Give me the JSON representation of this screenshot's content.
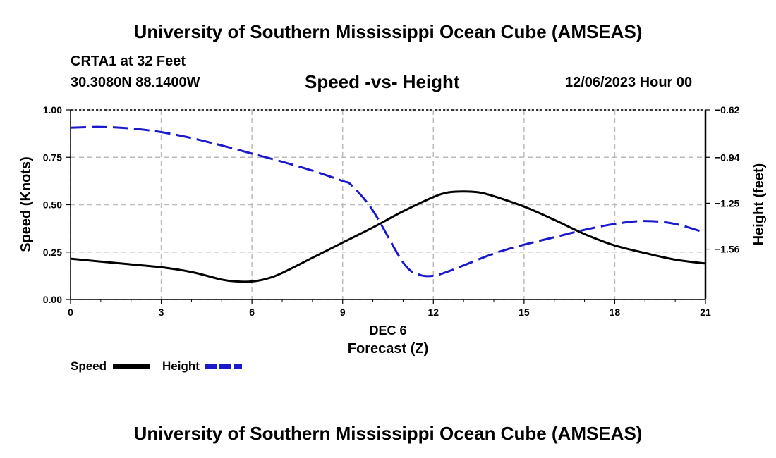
{
  "header": {
    "top_title": "University of Southern Mississippi Ocean Cube (AMSEAS)",
    "station": "CRTA1 at 32 Feet",
    "coords": "30.3080N  88.1400W",
    "chart_title": "Speed -vs- Height",
    "datetime": "12/06/2023 Hour 00",
    "bottom_title": "University of Southern Mississippi Ocean Cube (AMSEAS)"
  },
  "legend": {
    "speed_label": "Speed",
    "height_label": "Height"
  },
  "colors": {
    "speed": "#000000",
    "height": "#1a1acc",
    "grid": "#bbbbbb"
  },
  "chart_data": {
    "type": "line",
    "title": "Speed -vs- Height",
    "xlabel": "Forecast (Z)",
    "xlabel_date": "DEC 6",
    "ylabel": "Speed (Knots)",
    "y2label": "Height (feet)",
    "xlim": [
      0,
      21
    ],
    "ylim": [
      0,
      1
    ],
    "y2lim": [
      -1.9,
      -0.62
    ],
    "x_ticks": [
      "0",
      "3",
      "6",
      "9",
      "12",
      "15",
      "18",
      "21"
    ],
    "y_ticks": [
      "0.00",
      "0.25",
      "0.50",
      "0.75",
      "1.00"
    ],
    "y2_ticks": [
      "-1.56",
      "-1.25",
      "-0.94",
      "-0.62"
    ],
    "y2_tick_values": [
      -1.56,
      -1.25,
      -0.94,
      -0.62
    ],
    "grid": true,
    "series": [
      {
        "name": "Speed",
        "axis": "left",
        "style": "solid",
        "x": [
          0,
          1,
          2,
          3,
          4,
          5,
          5.5,
          6,
          6.5,
          7,
          8,
          9,
          10,
          11,
          12,
          12.5,
          13,
          13.5,
          14,
          15,
          16,
          17,
          18,
          19,
          20,
          21
        ],
        "values": [
          0.215,
          0.2,
          0.185,
          0.17,
          0.145,
          0.105,
          0.095,
          0.095,
          0.11,
          0.14,
          0.22,
          0.3,
          0.38,
          0.465,
          0.54,
          0.565,
          0.57,
          0.565,
          0.545,
          0.49,
          0.42,
          0.345,
          0.285,
          0.245,
          0.21,
          0.19
        ]
      },
      {
        "name": "Height",
        "axis": "right",
        "style": "dashed",
        "x": [
          0,
          1,
          2,
          3,
          4,
          5,
          6,
          7,
          8,
          9,
          9.3,
          10,
          11,
          11.5,
          12,
          12.5,
          13,
          14,
          15,
          16,
          17,
          18,
          19,
          20,
          21
        ],
        "values": [
          -0.74,
          -0.735,
          -0.745,
          -0.77,
          -0.81,
          -0.86,
          -0.915,
          -0.97,
          -1.03,
          -1.1,
          -1.13,
          -1.3,
          -1.65,
          -1.73,
          -1.74,
          -1.71,
          -1.67,
          -1.59,
          -1.53,
          -1.48,
          -1.43,
          -1.39,
          -1.37,
          -1.39,
          -1.45
        ]
      }
    ]
  }
}
